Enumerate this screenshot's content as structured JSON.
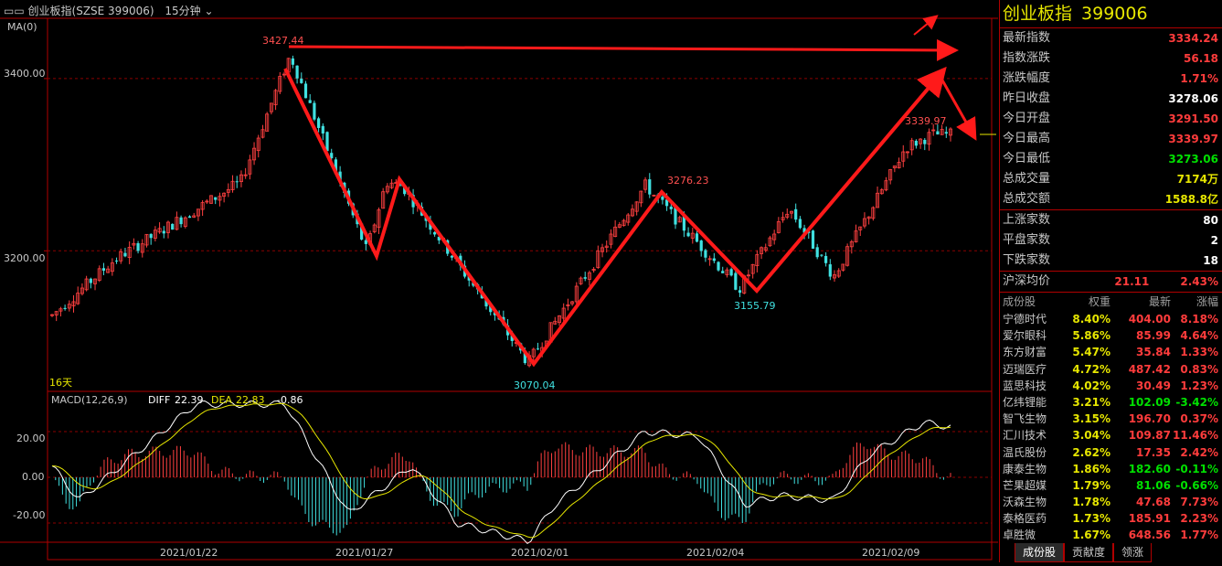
{
  "header": {
    "title": "创业板指(SZSE 399006)",
    "period": "15分钟"
  },
  "indicators": {
    "ma": "MA(0)",
    "macd": "MACD(12,26,9)",
    "diff_label": "DIFF",
    "diff_value": "22.39",
    "dea_label": "DEA",
    "dea_value": "22.83",
    "macd_value": "-0.86"
  },
  "annotations": {
    "high": "3427.44",
    "low": "3070.04",
    "mid_high": "3276.23",
    "mid_low": "3155.79",
    "recent_high": "3339.97",
    "days": "16天"
  },
  "axis": {
    "price_ticks": [
      "3400.00",
      "3200.00"
    ],
    "macd_ticks": [
      "20.00",
      "0.00",
      "-20.00"
    ],
    "dates": [
      "2021/01/22",
      "2021/01/27",
      "2021/02/01",
      "2021/02/04",
      "2021/02/09"
    ]
  },
  "panel": {
    "name": "创业板指",
    "code": "399006",
    "quote": [
      {
        "label": "最新指数",
        "value": "3334.24",
        "color": "#ff3c3c"
      },
      {
        "label": "指数涨跌",
        "value": "56.18",
        "color": "#ff3c3c"
      },
      {
        "label": "涨跌幅度",
        "value": "1.71%",
        "color": "#ff3c3c"
      },
      {
        "label": "昨日收盘",
        "value": "3278.06",
        "color": "#ffffff"
      },
      {
        "label": "今日开盘",
        "value": "3291.50",
        "color": "#ff3c3c"
      },
      {
        "label": "今日最高",
        "value": "3339.97",
        "color": "#ff3c3c"
      },
      {
        "label": "今日最低",
        "value": "3273.06",
        "color": "#00e000"
      },
      {
        "label": "总成交量",
        "value": "7174万",
        "color": "#e6e600"
      },
      {
        "label": "总成交额",
        "value": "1588.8亿",
        "color": "#e6e600"
      }
    ],
    "breadth": [
      {
        "label": "上涨家数",
        "value": "80"
      },
      {
        "label": "平盘家数",
        "value": "2"
      },
      {
        "label": "下跌家数",
        "value": "18"
      }
    ],
    "avg": {
      "label": "沪深均价",
      "price": "21.11",
      "pct": "2.43%"
    },
    "table_headers": [
      "成份股",
      "权重",
      "最新",
      "涨幅"
    ],
    "stocks": [
      {
        "name": "宁德时代",
        "weight": "8.40%",
        "price": "404.00",
        "change": "8.18%",
        "color": "#ff3c3c"
      },
      {
        "name": "爱尔眼科",
        "weight": "5.86%",
        "price": "85.99",
        "change": "4.64%",
        "color": "#ff3c3c"
      },
      {
        "name": "东方财富",
        "weight": "5.47%",
        "price": "35.84",
        "change": "1.33%",
        "color": "#ff3c3c"
      },
      {
        "name": "迈瑞医疗",
        "weight": "4.72%",
        "price": "487.42",
        "change": "0.83%",
        "color": "#ff3c3c"
      },
      {
        "name": "蓝思科技",
        "weight": "4.02%",
        "price": "30.49",
        "change": "1.23%",
        "color": "#ff3c3c"
      },
      {
        "name": "亿纬锂能",
        "weight": "3.21%",
        "price": "102.09",
        "change": "-3.42%",
        "color": "#00e000"
      },
      {
        "name": "智飞生物",
        "weight": "3.15%",
        "price": "196.70",
        "change": "0.37%",
        "color": "#ff3c3c"
      },
      {
        "name": "汇川技术",
        "weight": "3.04%",
        "price": "109.87",
        "change": "11.46%",
        "color": "#ff3c3c"
      },
      {
        "name": "温氏股份",
        "weight": "2.62%",
        "price": "17.35",
        "change": "2.42%",
        "color": "#ff3c3c"
      },
      {
        "name": "康泰生物",
        "weight": "1.86%",
        "price": "182.60",
        "change": "-0.11%",
        "color": "#00e000"
      },
      {
        "name": "芒果超媒",
        "weight": "1.79%",
        "price": "81.06",
        "change": "-0.66%",
        "color": "#00e000"
      },
      {
        "name": "沃森生物",
        "weight": "1.78%",
        "price": "47.68",
        "change": "7.73%",
        "color": "#ff3c3c"
      },
      {
        "name": "泰格医药",
        "weight": "1.73%",
        "price": "185.91",
        "change": "2.23%",
        "color": "#ff3c3c"
      },
      {
        "name": "卓胜微",
        "weight": "1.67%",
        "price": "648.56",
        "change": "1.77%",
        "color": "#ff3c3c"
      }
    ],
    "tabs": [
      "成份股",
      "贡献度",
      "领涨"
    ]
  },
  "chart_data": {
    "type": "candlestick",
    "price_range": [
      3040,
      3470
    ],
    "macd_range": [
      -28,
      36
    ],
    "pivots": [
      {
        "x": 0,
        "y": 3125
      },
      {
        "x": 0.07,
        "y": 3190
      },
      {
        "x": 0.21,
        "y": 3280
      },
      {
        "x": 0.265,
        "y": 3427.44
      },
      {
        "x": 0.35,
        "y": 3200
      },
      {
        "x": 0.372,
        "y": 3280
      },
      {
        "x": 0.39,
        "y": 3275
      },
      {
        "x": 0.53,
        "y": 3070.04
      },
      {
        "x": 0.66,
        "y": 3276.23
      },
      {
        "x": 0.765,
        "y": 3155.79
      },
      {
        "x": 0.82,
        "y": 3250
      },
      {
        "x": 0.87,
        "y": 3170
      },
      {
        "x": 0.95,
        "y": 3320
      },
      {
        "x": 0.98,
        "y": 3335
      }
    ],
    "macd_pivots": [
      {
        "x": 0,
        "y": 5
      },
      {
        "x": 0.03,
        "y": -10
      },
      {
        "x": 0.16,
        "y": 32
      },
      {
        "x": 0.26,
        "y": 32
      },
      {
        "x": 0.33,
        "y": -16
      },
      {
        "x": 0.4,
        "y": 5
      },
      {
        "x": 0.45,
        "y": -20
      },
      {
        "x": 0.53,
        "y": -28
      },
      {
        "x": 0.56,
        "y": -12
      },
      {
        "x": 0.66,
        "y": 20
      },
      {
        "x": 0.72,
        "y": 18
      },
      {
        "x": 0.77,
        "y": -12
      },
      {
        "x": 0.81,
        "y": -8
      },
      {
        "x": 0.87,
        "y": -10
      },
      {
        "x": 0.91,
        "y": 10
      },
      {
        "x": 0.97,
        "y": 24
      },
      {
        "x": 1.0,
        "y": 22
      }
    ]
  }
}
